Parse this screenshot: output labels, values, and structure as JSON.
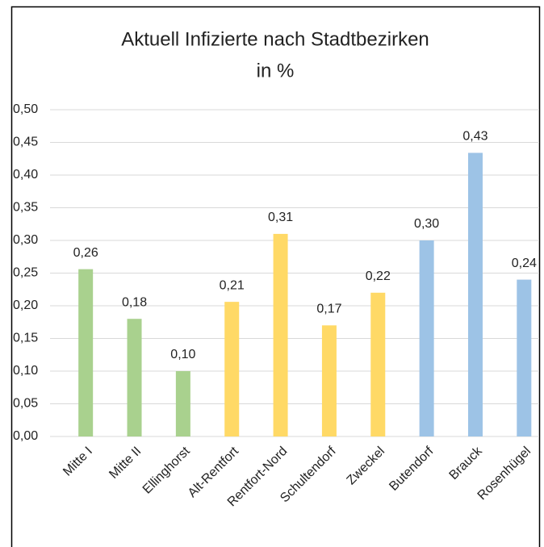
{
  "chart_data": {
    "type": "bar",
    "title": [
      "Aktuell Infizierte nach Stadtbezirken",
      "in %"
    ],
    "categories": [
      "Mitte I",
      "Mitte II",
      "Ellinghorst",
      "Alt-Rentfort",
      "Rentfort-Nord",
      "Schultendorf",
      "Zweckel",
      "Butendorf",
      "Brauck",
      "Rosenhügel"
    ],
    "values": [
      0.256,
      0.18,
      0.1,
      0.206,
      0.31,
      0.17,
      0.22,
      0.3,
      0.434,
      0.24
    ],
    "value_labels": [
      "0,26",
      "0,18",
      "0,10",
      "0,21",
      "0,31",
      "0,17",
      "0,22",
      "0,30",
      "0,43",
      "0,24"
    ],
    "colors": [
      "#a9d18e",
      "#a9d18e",
      "#a9d18e",
      "#ffd966",
      "#ffd966",
      "#ffd966",
      "#ffd966",
      "#9dc3e6",
      "#9dc3e6",
      "#9dc3e6"
    ],
    "ylim": [
      0,
      0.5
    ],
    "yticks": [
      {
        "value": 0,
        "label": "0,00"
      },
      {
        "value": 0.05,
        "label": "0,05"
      },
      {
        "value": 0.1,
        "label": "0,10"
      },
      {
        "value": 0.15,
        "label": "0,15"
      },
      {
        "value": 0.2,
        "label": "0,20"
      },
      {
        "value": 0.25,
        "label": "0,25"
      },
      {
        "value": 0.3,
        "label": "0,30"
      },
      {
        "value": 0.35,
        "label": "0,35"
      },
      {
        "value": 0.4,
        "label": "0,40"
      },
      {
        "value": 0.45,
        "label": "0,45"
      },
      {
        "value": 0.5,
        "label": "0,50"
      }
    ],
    "grid": true
  }
}
